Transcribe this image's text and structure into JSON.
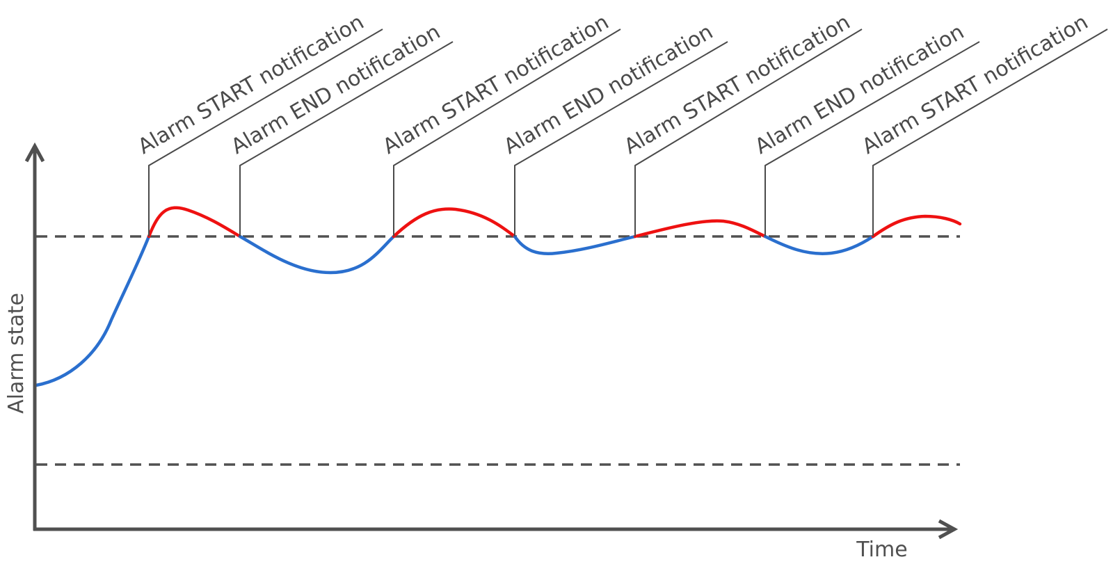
{
  "axes": {
    "y_label": "Alarm state",
    "x_label": "Time"
  },
  "colors": {
    "axis": "#505050",
    "threshold": "#505050",
    "callout": "#4a4a4a",
    "alarm_on": "#ee1111",
    "alarm_off": "#2a6fce"
  },
  "notifications": [
    {
      "label": "Alarm START notification",
      "type": "start"
    },
    {
      "label": "Alarm END notification",
      "type": "end"
    },
    {
      "label": "Alarm START notification",
      "type": "start"
    },
    {
      "label": "Alarm END notification",
      "type": "end"
    },
    {
      "label": "Alarm START notification",
      "type": "start"
    },
    {
      "label": "Alarm END notification",
      "type": "end"
    },
    {
      "label": "Alarm START notification",
      "type": "start"
    }
  ]
}
